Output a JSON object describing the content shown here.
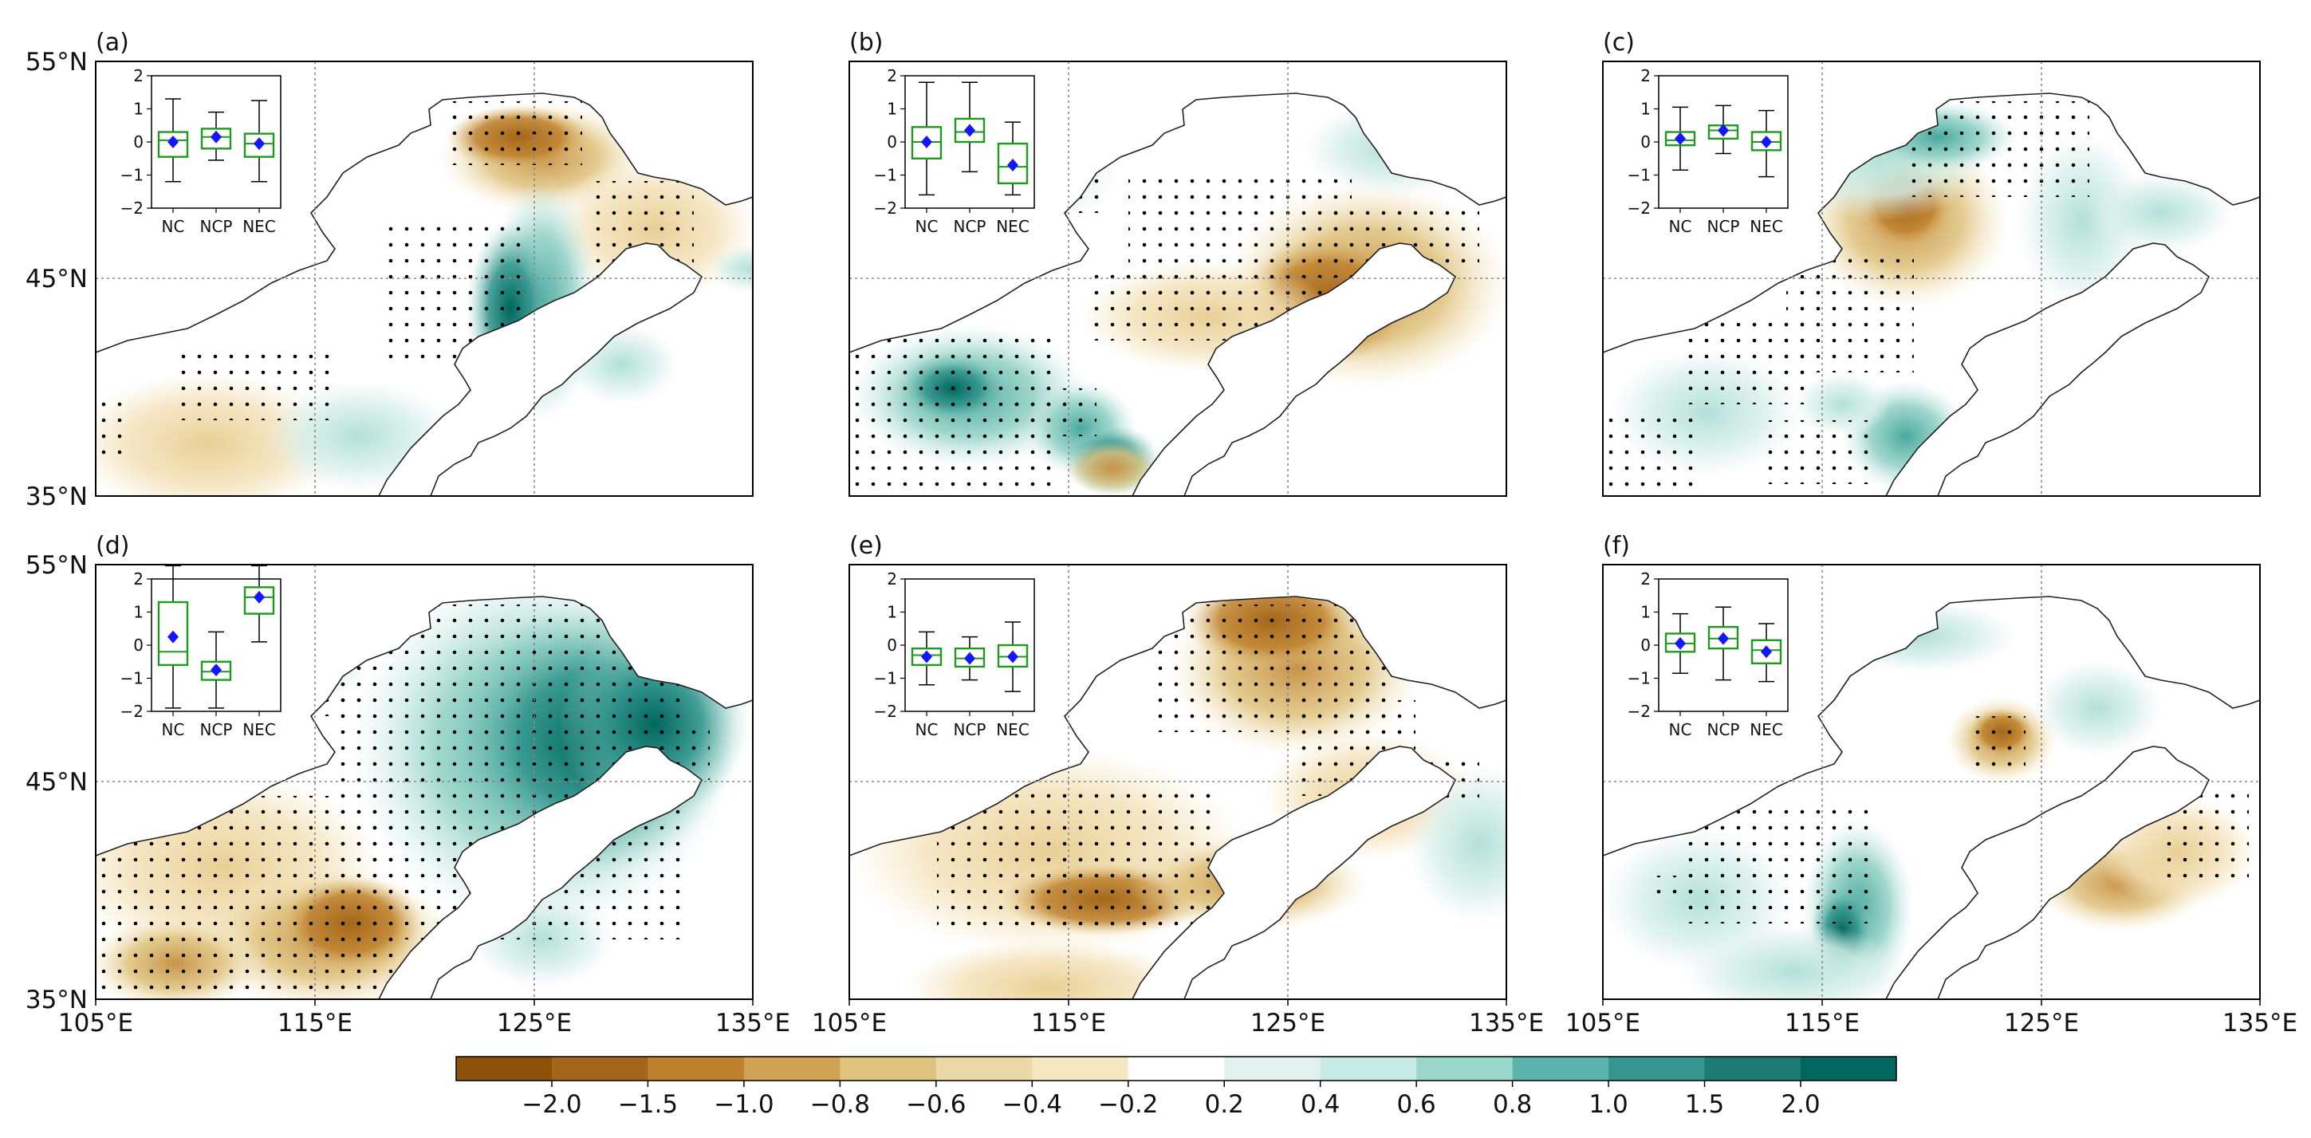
{
  "panels": [
    {
      "id": "a",
      "label": "(a)",
      "inset": {
        "NC": 0.0,
        "NCP": 0.15,
        "NEC": -0.05
      }
    },
    {
      "id": "b",
      "label": "(b)",
      "inset": {
        "NC": 0.0,
        "NCP": 0.35,
        "NEC": -0.7
      }
    },
    {
      "id": "c",
      "label": "(c)",
      "inset": {
        "NC": 0.1,
        "NCP": 0.35,
        "NEC": 0.0
      }
    },
    {
      "id": "d",
      "label": "(d)",
      "inset": {
        "NC": 0.25,
        "NCP": -0.75,
        "NEC": 1.45
      }
    },
    {
      "id": "e",
      "label": "(e)",
      "inset": {
        "NC": -0.35,
        "NCP": -0.4,
        "NEC": -0.35
      }
    },
    {
      "id": "f",
      "label": "(f)",
      "inset": {
        "NC": 0.05,
        "NCP": 0.2,
        "NEC": -0.2
      }
    }
  ],
  "axes": {
    "lat_labels": [
      "55°N",
      "45°N",
      "35°N"
    ],
    "lon_labels": [
      "105°E",
      "115°E",
      "125°E",
      "135°E"
    ]
  },
  "inset": {
    "yticks": [
      "2",
      "1",
      "0",
      "−1",
      "−2"
    ],
    "categories": [
      "NC",
      "NCP",
      "NEC"
    ]
  },
  "colorbar": {
    "ticks": [
      "−2.0",
      "−1.5",
      "−1.0",
      "−0.8",
      "−0.6",
      "−0.4",
      "−0.2",
      "0.2",
      "0.4",
      "0.6",
      "0.8",
      "1.0",
      "1.5",
      "2.0"
    ],
    "colors": [
      "#8c510a",
      "#a4661a",
      "#bf812d",
      "#d0a354",
      "#dfc27d",
      "#ecd9a8",
      "#f6e8c3",
      "#ffffff",
      "#e3f1ee",
      "#c7eae5",
      "#9bd6ca",
      "#5ab4ac",
      "#35978f",
      "#1e7b72",
      "#01665e"
    ]
  }
}
